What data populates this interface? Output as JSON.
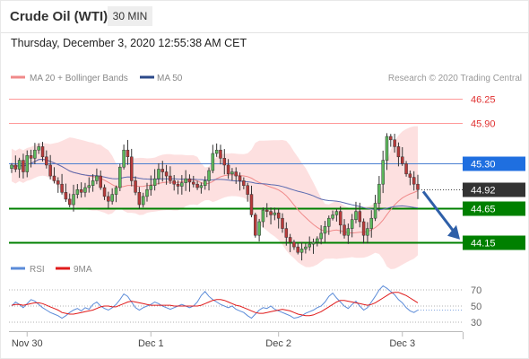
{
  "header": {
    "title": "Crude Oil (WTI)",
    "timeframe": "30 MIN",
    "datetime": "Thursday, December 3, 2020 12:55:38 AM CET"
  },
  "legend": {
    "ma20_label": "MA 20 + Bollinger Bands",
    "ma50_label": "MA 50",
    "credit": "Research © 2020 Trading Central"
  },
  "colors": {
    "candle_up": "#5cb85c",
    "candle_down": "#b83a3a",
    "ma20": "#f08a8a",
    "bollinger_fill": "#fde0e0",
    "ma50": "#5b6bb0",
    "pivot_line": "#4a7fd1",
    "pivot_badge": "#1f6fe0",
    "support": "#008000",
    "resistance": "#ff9999",
    "current": "#333333",
    "rsi": "#5b8bd8",
    "rsi_ma": "#e01b1b",
    "arrow": "#2e5fa8"
  },
  "chart_data": [
    {
      "type": "candlestick",
      "title": "",
      "x_ticks": [
        "Nov 30",
        "Dec 1",
        "Dec 2",
        "Dec 3"
      ],
      "ylim": [
        43.95,
        46.45
      ],
      "levels": [
        {
          "value": 46.25,
          "label": "46.25",
          "kind": "resistance"
        },
        {
          "value": 45.9,
          "label": "45.90",
          "kind": "resistance"
        },
        {
          "value": 45.3,
          "label": "45.30",
          "kind": "pivot"
        },
        {
          "value": 44.92,
          "label": "44.92",
          "kind": "current"
        },
        {
          "value": 44.65,
          "label": "44.65",
          "kind": "support"
        },
        {
          "value": 44.15,
          "label": "44.15",
          "kind": "support"
        }
      ],
      "close": [
        45.28,
        45.22,
        45.35,
        45.18,
        45.42,
        45.38,
        45.5,
        45.55,
        45.4,
        45.28,
        45.12,
        45.05,
        45.0,
        44.88,
        44.78,
        44.7,
        44.85,
        44.92,
        44.88,
        44.95,
        44.98,
        45.05,
        45.12,
        44.95,
        44.82,
        44.75,
        44.85,
        44.95,
        45.25,
        45.5,
        45.4,
        45.05,
        44.88,
        44.7,
        44.82,
        44.92,
        44.98,
        45.08,
        45.22,
        45.18,
        45.12,
        45.05,
        45.0,
        44.97,
        45.02,
        45.08,
        45.03,
        45.0,
        44.95,
        44.98,
        45.05,
        45.2,
        45.45,
        45.5,
        45.38,
        45.28,
        45.15,
        45.18,
        45.12,
        45.05,
        44.98,
        44.85,
        44.55,
        44.25,
        44.45,
        44.62,
        44.6,
        44.55,
        44.58,
        44.5,
        44.35,
        44.22,
        44.15,
        44.08,
        44.0,
        44.05,
        44.08,
        44.12,
        44.15,
        44.2,
        44.28,
        44.38,
        44.5,
        44.55,
        44.6,
        44.4,
        44.25,
        44.35,
        44.48,
        44.6,
        44.45,
        44.25,
        44.35,
        44.5,
        44.72,
        45.0,
        45.35,
        45.7,
        45.65,
        45.55,
        45.4,
        45.3,
        45.15,
        45.1,
        45.0,
        44.92
      ],
      "rsi": {
        "ylim": [
          20,
          80
        ],
        "ticks": [
          70,
          50,
          30
        ],
        "rsi_label": "RSI",
        "ma_label": "9MA",
        "rsi_values": [
          50,
          55,
          52,
          48,
          53,
          58,
          56,
          52,
          48,
          45,
          42,
          40,
          38,
          35,
          38,
          42,
          45,
          47,
          44,
          48,
          46,
          52,
          55,
          50,
          47,
          45,
          48,
          52,
          58,
          65,
          62,
          55,
          48,
          45,
          48,
          50,
          52,
          55,
          53,
          50,
          48,
          46,
          48,
          50,
          52,
          50,
          48,
          50,
          55,
          63,
          68,
          62,
          58,
          55,
          52,
          50,
          48,
          50,
          46,
          44,
          42,
          38,
          35,
          40,
          45,
          48,
          47,
          50,
          46,
          44,
          42,
          40,
          38,
          35,
          36,
          38,
          41,
          43,
          45,
          48,
          50,
          55,
          62,
          66,
          60,
          55,
          50,
          47,
          52,
          56,
          50,
          45,
          48,
          55,
          62,
          70,
          75,
          72,
          68,
          64,
          58,
          54,
          48,
          44,
          42,
          45
        ],
        "ma_values": [
          51,
          52,
          52,
          51,
          52,
          53,
          54,
          54,
          53,
          51,
          49,
          47,
          45,
          42,
          41,
          40,
          40,
          41,
          42,
          43,
          44,
          45,
          47,
          49,
          50,
          50,
          49,
          49,
          51,
          53,
          55,
          56,
          55,
          54,
          53,
          52,
          51,
          51,
          51,
          51,
          51,
          51,
          50,
          50,
          50,
          50,
          50,
          50,
          50,
          51,
          53,
          55,
          57,
          58,
          58,
          57,
          55,
          53,
          51,
          50,
          48,
          46,
          44,
          42,
          41,
          41,
          42,
          43,
          44,
          45,
          46,
          45,
          44,
          42,
          40,
          39,
          38,
          38,
          39,
          41,
          43,
          46,
          49,
          52,
          55,
          57,
          57,
          56,
          55,
          54,
          53,
          52,
          51,
          52,
          54,
          57,
          60,
          63,
          66,
          67,
          67,
          65,
          63,
          60,
          57,
          54
        ]
      }
    }
  ]
}
